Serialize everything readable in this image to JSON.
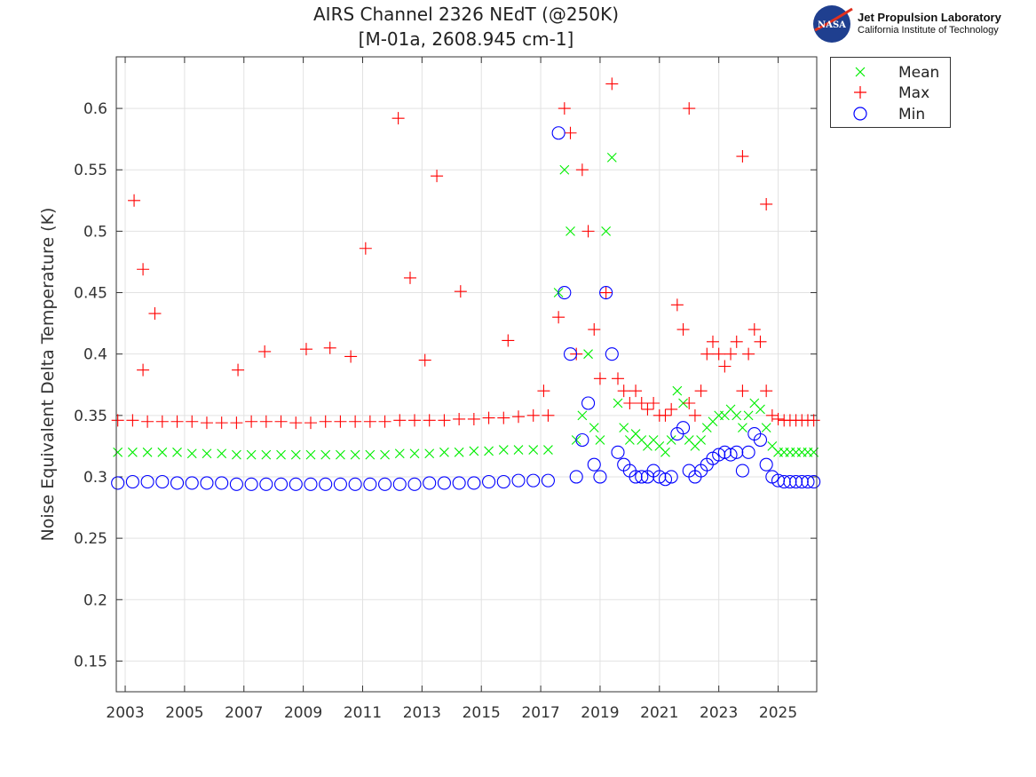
{
  "chart_data": {
    "type": "scatter",
    "title": "AIRS Channel 2326 NEdT (@250K)",
    "subtitle": "[M-01a, 2608.945 cm-1]",
    "xlabel": "",
    "ylabel": "Noise Equivalent Delta Temperature (K)",
    "xlim": [
      2002.7,
      2026.3
    ],
    "ylim": [
      0.125,
      0.642
    ],
    "x_ticks": [
      "2003",
      "2005",
      "2007",
      "2009",
      "2011",
      "2013",
      "2015",
      "2017",
      "2019",
      "2021",
      "2023",
      "2025"
    ],
    "y_ticks": [
      "0.15",
      "0.2",
      "0.25",
      "0.3",
      "0.35",
      "0.4",
      "0.45",
      "0.5",
      "0.55",
      "0.6"
    ],
    "grid": true,
    "legend_position": "outside-top-right",
    "x": [
      2002.75,
      2003.25,
      2003.75,
      2004.25,
      2004.75,
      2005.25,
      2005.75,
      2006.25,
      2006.75,
      2007.25,
      2007.75,
      2008.25,
      2008.75,
      2009.25,
      2009.75,
      2010.25,
      2010.75,
      2011.25,
      2011.75,
      2012.25,
      2012.75,
      2013.25,
      2013.75,
      2014.25,
      2014.75,
      2015.25,
      2015.75,
      2016.25,
      2016.75,
      2017.25,
      2017.6,
      2017.8,
      2018.0,
      2018.2,
      2018.4,
      2018.6,
      2018.8,
      2019.0,
      2019.2,
      2019.4,
      2019.6,
      2019.8,
      2020.0,
      2020.2,
      2020.4,
      2020.6,
      2020.8,
      2021.0,
      2021.2,
      2021.4,
      2021.6,
      2021.8,
      2022.0,
      2022.2,
      2022.4,
      2022.6,
      2022.8,
      2023.0,
      2023.2,
      2023.4,
      2023.6,
      2023.8,
      2024.0,
      2024.2,
      2024.4,
      2024.6,
      2024.8,
      2025.0,
      2025.2,
      2025.4,
      2025.6,
      2025.8,
      2026.0,
      2026.2
    ],
    "series": [
      {
        "name": "Mean",
        "marker": "x",
        "color": "#00ee00",
        "values": [
          0.32,
          0.32,
          0.32,
          0.32,
          0.32,
          0.319,
          0.319,
          0.319,
          0.318,
          0.318,
          0.318,
          0.318,
          0.318,
          0.318,
          0.318,
          0.318,
          0.318,
          0.318,
          0.318,
          0.319,
          0.319,
          0.319,
          0.32,
          0.32,
          0.321,
          0.321,
          0.322,
          0.322,
          0.322,
          0.322,
          0.45,
          0.55,
          0.5,
          0.33,
          0.35,
          0.4,
          0.34,
          0.33,
          0.5,
          0.56,
          0.36,
          0.34,
          0.33,
          0.335,
          0.33,
          0.325,
          0.33,
          0.325,
          0.32,
          0.33,
          0.37,
          0.36,
          0.33,
          0.325,
          0.33,
          0.34,
          0.345,
          0.35,
          0.35,
          0.355,
          0.35,
          0.34,
          0.35,
          0.36,
          0.355,
          0.34,
          0.325,
          0.32,
          0.32,
          0.32,
          0.32,
          0.32,
          0.32,
          0.32
        ]
      },
      {
        "name": "Max",
        "marker": "+",
        "color": "#ff0000",
        "values": [
          0.346,
          0.346,
          0.345,
          0.345,
          0.345,
          0.345,
          0.344,
          0.344,
          0.344,
          0.345,
          0.345,
          0.345,
          0.344,
          0.344,
          0.345,
          0.345,
          0.345,
          0.345,
          0.345,
          0.346,
          0.346,
          0.346,
          0.346,
          0.347,
          0.347,
          0.348,
          0.348,
          0.349,
          0.35,
          0.35,
          0.43,
          0.6,
          0.58,
          0.4,
          0.55,
          0.5,
          0.42,
          0.38,
          0.45,
          0.62,
          0.38,
          0.37,
          0.36,
          0.37,
          0.36,
          0.355,
          0.36,
          0.35,
          0.35,
          0.355,
          0.44,
          0.42,
          0.36,
          0.35,
          0.37,
          0.4,
          0.41,
          0.4,
          0.39,
          0.4,
          0.41,
          0.37,
          0.4,
          0.42,
          0.41,
          0.37,
          0.35,
          0.347,
          0.346,
          0.346,
          0.346,
          0.346,
          0.346,
          0.346
        ],
        "outliers": [
          [
            2003.3,
            0.525
          ],
          [
            2003.6,
            0.469
          ],
          [
            2004.0,
            0.433
          ],
          [
            2003.6,
            0.387
          ],
          [
            2006.8,
            0.387
          ],
          [
            2007.7,
            0.402
          ],
          [
            2009.1,
            0.404
          ],
          [
            2009.9,
            0.405
          ],
          [
            2010.6,
            0.398
          ],
          [
            2011.1,
            0.486
          ],
          [
            2012.2,
            0.592
          ],
          [
            2012.6,
            0.462
          ],
          [
            2013.1,
            0.395
          ],
          [
            2013.5,
            0.545
          ],
          [
            2014.3,
            0.451
          ],
          [
            2015.9,
            0.411
          ],
          [
            2017.1,
            0.37
          ],
          [
            2022.0,
            0.6
          ],
          [
            2023.8,
            0.561
          ],
          [
            2024.6,
            0.522
          ]
        ]
      },
      {
        "name": "Min",
        "marker": "o",
        "color": "#0000ff",
        "values": [
          0.295,
          0.296,
          0.296,
          0.296,
          0.295,
          0.295,
          0.295,
          0.295,
          0.294,
          0.294,
          0.294,
          0.294,
          0.294,
          0.294,
          0.294,
          0.294,
          0.294,
          0.294,
          0.294,
          0.294,
          0.294,
          0.295,
          0.295,
          0.295,
          0.295,
          0.296,
          0.296,
          0.297,
          0.297,
          0.297,
          0.58,
          0.45,
          0.4,
          0.3,
          0.33,
          0.36,
          0.31,
          0.3,
          0.45,
          0.4,
          0.32,
          0.31,
          0.305,
          0.3,
          0.3,
          0.3,
          0.305,
          0.3,
          0.298,
          0.3,
          0.335,
          0.34,
          0.305,
          0.3,
          0.305,
          0.31,
          0.315,
          0.318,
          0.32,
          0.318,
          0.32,
          0.305,
          0.32,
          0.335,
          0.33,
          0.31,
          0.3,
          0.297,
          0.296,
          0.296,
          0.296,
          0.296,
          0.296,
          0.296
        ]
      }
    ]
  },
  "logo": {
    "line1": "Jet Propulsion Laboratory",
    "line2": "California Institute of Technology",
    "badge": "NASA"
  },
  "legend": [
    "Mean",
    "Max",
    "Min"
  ]
}
